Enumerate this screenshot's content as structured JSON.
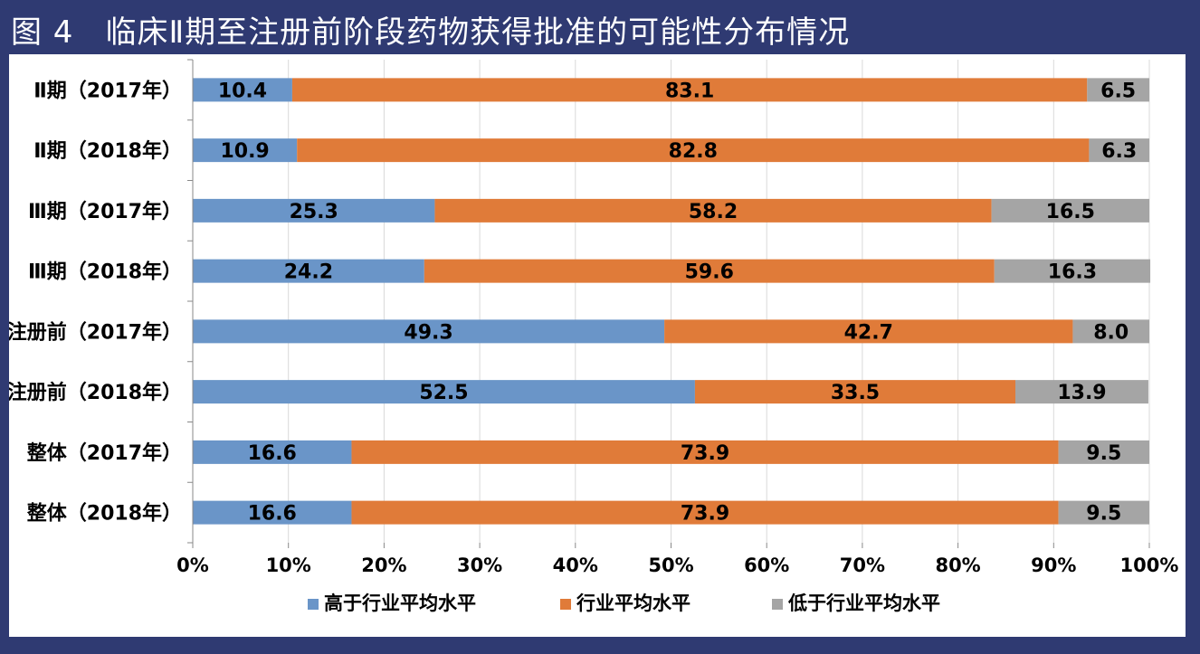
{
  "title": "图 4　临床Ⅱ期至注册前阶段药物获得批准的可能性分布情况",
  "chart_data": {
    "type": "bar",
    "orientation": "horizontal",
    "stacked": "percent",
    "categories": [
      "Ⅱ期（2017年）",
      "Ⅱ期（2018年）",
      "Ⅲ期（2017年）",
      "Ⅲ期（2018年）",
      "注册前（2017年）",
      "注册前（2018年）",
      "整体（2017年）",
      "整体（2018年）"
    ],
    "series": [
      {
        "name": "高于行业平均水平",
        "color": "#6a95c8",
        "values": [
          10.4,
          10.9,
          25.3,
          24.2,
          49.3,
          52.5,
          16.6,
          16.6
        ]
      },
      {
        "name": "行业平均水平",
        "color": "#e07b39",
        "values": [
          83.1,
          82.8,
          58.2,
          59.6,
          42.7,
          33.5,
          73.9,
          73.9
        ]
      },
      {
        "name": "低于行业平均水平",
        "color": "#a5a5a5",
        "values": [
          6.5,
          6.3,
          16.5,
          16.3,
          8.0,
          13.9,
          9.5,
          9.5
        ]
      }
    ],
    "value_labels": [
      [
        "10.4",
        "10.9",
        "25.3",
        "24.2",
        "49.3",
        "52.5",
        "16.6",
        "16.6"
      ],
      [
        "83.1",
        "82.8",
        "58.2",
        "59.6",
        "42.7",
        "33.5",
        "73.9",
        "73.9"
      ],
      [
        "6.5",
        "6.3",
        "16.5",
        "16.3",
        "8.0",
        "13.9",
        "9.5",
        "9.5"
      ]
    ],
    "xticks": [
      "0%",
      "10%",
      "20%",
      "30%",
      "40%",
      "50%",
      "60%",
      "70%",
      "80%",
      "90%",
      "100%"
    ],
    "xlim": [
      0,
      100
    ],
    "grid": true,
    "legend": "bottom"
  }
}
